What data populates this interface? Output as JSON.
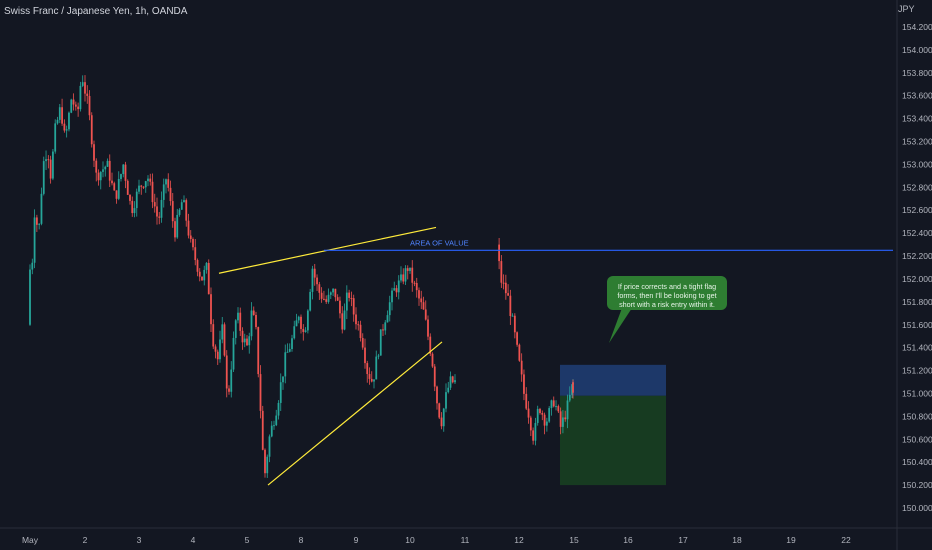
{
  "header": {
    "symbol": "Swiss Franc / Japanese Yen, 1h, OANDA"
  },
  "price_axis": {
    "currency": "JPY"
  },
  "annotations": {
    "area_of_value_label": "AREA OF VALUE",
    "area_of_value_price": 152.25,
    "note_text": "If price corrects and a tight flag forms, then I'll be looking to get short with a risk entry within it."
  },
  "colors": {
    "background": "#131722",
    "bull_candle": "#26a69a",
    "bear_candle": "#ef5350",
    "trendline": "#ffeb3b",
    "horizontal_line": "#2962ff",
    "risk_zone": "#1e3a6e",
    "reward_zone": "#173d22",
    "note_bg": "#2e7d32"
  },
  "chart_data": {
    "type": "candlestick",
    "title": "Swiss Franc / Japanese Yen, 1h, OANDA",
    "ylabel": "JPY",
    "ylim": [
      149.9,
      154.35
    ],
    "y_ticks": [
      "150.000",
      "150.200",
      "150.400",
      "150.600",
      "150.800",
      "151.000",
      "151.200",
      "151.400",
      "151.600",
      "151.800",
      "152.000",
      "152.200",
      "152.400",
      "152.600",
      "152.800",
      "153.000",
      "153.200",
      "153.400",
      "153.600",
      "153.800",
      "154.000",
      "154.200"
    ],
    "x_ticks": [
      "May",
      "2",
      "3",
      "4",
      "5",
      "8",
      "9",
      "10",
      "11",
      "12",
      "15",
      "16",
      "17",
      "18",
      "19",
      "22"
    ],
    "grid": false,
    "approx_close_path": [
      {
        "day": "May",
        "price": 152.1
      },
      {
        "day": "2",
        "price": 153.5
      },
      {
        "day": "3",
        "price": 152.9
      },
      {
        "day": "4",
        "price": 152.4
      },
      {
        "day": "5",
        "price": 150.3
      },
      {
        "day": "8",
        "price": 152.1
      },
      {
        "day": "9",
        "price": 151.4
      },
      {
        "day": "10",
        "price": 152.1
      },
      {
        "day": "11",
        "price": 151.1
      },
      {
        "day": "12",
        "price": 150.8
      },
      {
        "day": "15",
        "price": 151.1
      }
    ],
    "trendlines": [
      {
        "name": "upper",
        "from": {
          "day": "4",
          "price": 152.05
        },
        "to": {
          "day": "10",
          "price": 152.45
        }
      },
      {
        "name": "lower",
        "from": {
          "day": "5",
          "price": 150.2
        },
        "to": {
          "day": "10",
          "price": 151.45
        }
      }
    ],
    "position_tool": {
      "stop_top": 151.25,
      "entry": 150.98,
      "target": 150.2
    }
  }
}
